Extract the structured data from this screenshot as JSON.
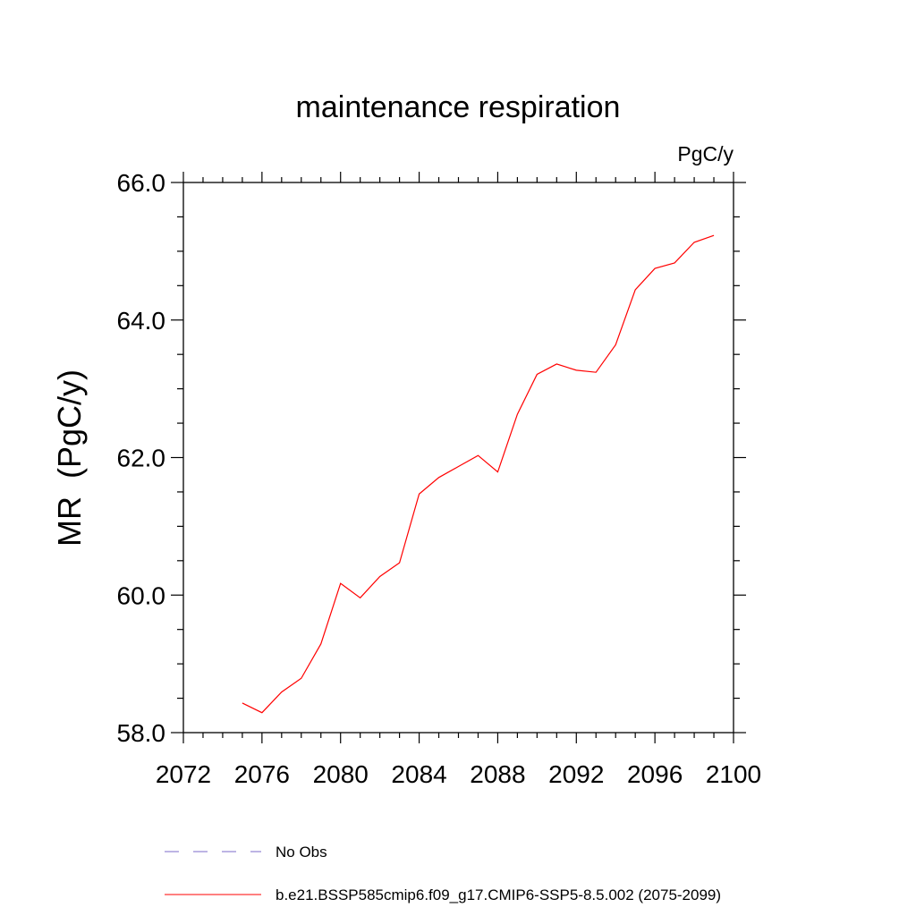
{
  "chart_data": {
    "type": "line",
    "title": "maintenance respiration",
    "units_label": "PgC/y",
    "ylabel": "MR  (PgC/y)",
    "xlabel": "",
    "xlim": [
      2072,
      2100
    ],
    "ylim": [
      58.0,
      66.0
    ],
    "x_ticks": [
      2072,
      2076,
      2080,
      2084,
      2088,
      2092,
      2096,
      2100
    ],
    "x_tick_labels": [
      "2072",
      "2076",
      "2080",
      "2084",
      "2088",
      "2092",
      "2096",
      "2100"
    ],
    "y_ticks": [
      58.0,
      60.0,
      62.0,
      64.0,
      66.0
    ],
    "y_tick_labels": [
      "58.0",
      "60.0",
      "62.0",
      "64.0",
      "66.0"
    ],
    "grid": false,
    "legend_position": "bottom",
    "series": [
      {
        "name": "No Obs",
        "color": "#7b68c8",
        "style": "dashed",
        "x": [],
        "values": []
      },
      {
        "name": "b.e21.BSSP585cmip6.f09_g17.CMIP6-SSP5-8.5.002 (2075-2099)",
        "color": "#ff0000",
        "style": "solid",
        "x": [
          2075,
          2076,
          2077,
          2078,
          2079,
          2080,
          2081,
          2082,
          2083,
          2084,
          2085,
          2086,
          2087,
          2088,
          2089,
          2090,
          2091,
          2092,
          2093,
          2094,
          2095,
          2096,
          2097,
          2098,
          2099
        ],
        "values": [
          58.43,
          58.29,
          58.59,
          58.79,
          59.29,
          60.17,
          59.96,
          60.27,
          60.47,
          61.47,
          61.71,
          61.87,
          62.03,
          61.79,
          62.63,
          63.21,
          63.36,
          63.27,
          63.24,
          63.64,
          64.44,
          64.75,
          64.83,
          65.13,
          65.23
        ]
      }
    ]
  }
}
